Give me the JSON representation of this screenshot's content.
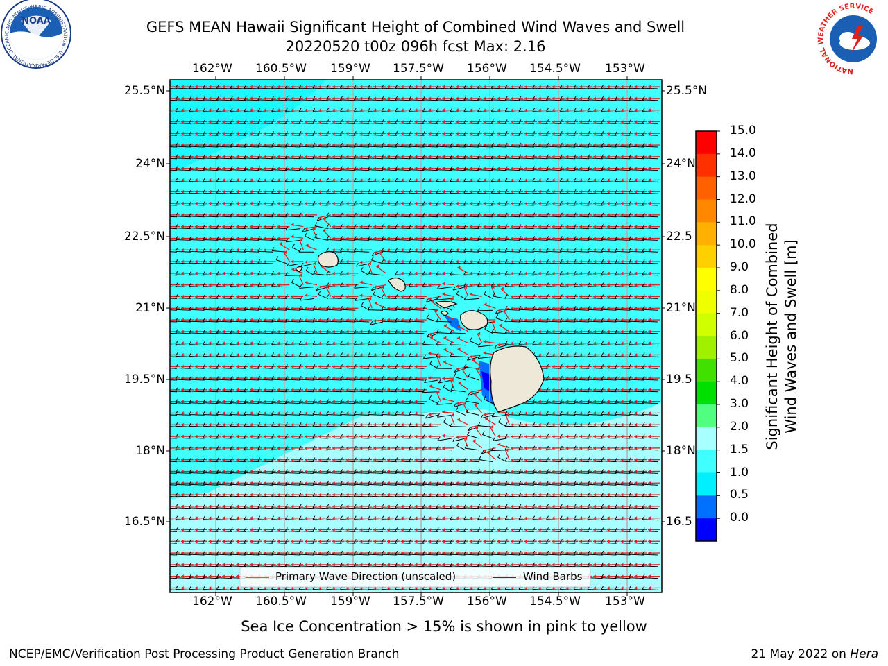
{
  "header": {
    "title_line1": "GEFS MEAN Hawaii Significant Height of Combined Wind Waves and Swell",
    "title_line2": "20220520 t00z 096h fcst   Max: 2.16"
  },
  "logos": {
    "left_name": "NOAA",
    "left_ring_text": "NATIONAL OCEANIC AND ATMOSPHERIC ADMINISTRATION · U.S. DEPARTMENT OF COMMERCE",
    "right_ring_text": "NATIONAL WEATHER SERVICE"
  },
  "axes": {
    "lon_labels": [
      "162°W",
      "160.5°W",
      "159°W",
      "157.5°W",
      "156°W",
      "154.5°W",
      "153°W"
    ],
    "lat_labels_left": [
      "25.5°N",
      "24°N",
      "22.5°N",
      "21°N",
      "19.5°N",
      "18°N",
      "16.5°N"
    ],
    "lat_labels_right": [
      "25.5°N",
      "24°N",
      "22.5",
      "21°N",
      "19.5",
      "18°N",
      "16.5"
    ]
  },
  "legend": {
    "wave_label": "Primary Wave Direction (unscaled)",
    "barb_label": "Wind Barbs"
  },
  "colorbar": {
    "label_line1": "Significant Height of Combined",
    "label_line2": "Wind Waves and Swell [m]",
    "ticks": [
      "15.0",
      "14.0",
      "13.0",
      "12.0",
      "11.0",
      "10.0",
      "9.0",
      "8.0",
      "7.0",
      "6.0",
      "5.0",
      "4.0",
      "3.0",
      "2.0",
      "1.5",
      "1.0",
      "0.5",
      "0.0"
    ],
    "colors_bottom_up": [
      "#0000ff",
      "#0070ff",
      "#00f0ff",
      "#40ffff",
      "#a8ffff",
      "#50ff80",
      "#00e000",
      "#40e000",
      "#a0f000",
      "#d0ff00",
      "#f0ff00",
      "#ffff00",
      "#ffd000",
      "#ffb000",
      "#ff8800",
      "#ff6000",
      "#ff3000",
      "#ff0000"
    ]
  },
  "colors": {
    "ocean_main": "#40ffff",
    "ocean_light": "#a8ffff",
    "ocean_deep": "#00f0ff",
    "land": "#ede8d8",
    "wave_arrow": "#e02020",
    "wind_barb": "#000000"
  },
  "caption": "Sea Ice Concentration > 15% is shown in pink to yellow",
  "footer": {
    "left": "NCEP/EMC/Verification Post Processing Product Generation Branch",
    "date": "21 May 2022 on ",
    "machine": "Hera"
  }
}
